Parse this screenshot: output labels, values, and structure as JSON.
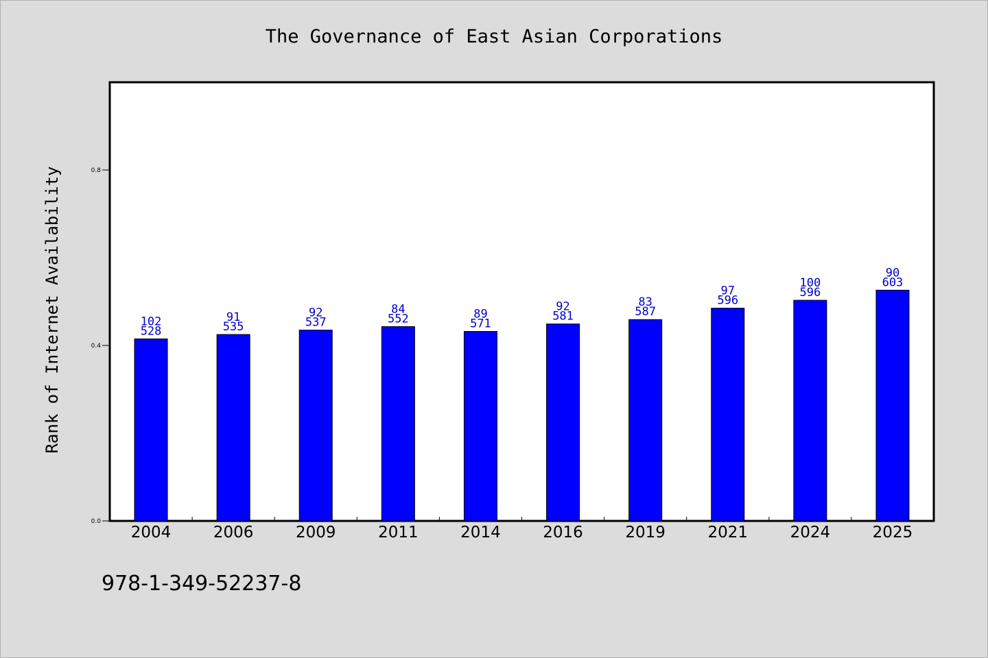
{
  "chart_data": {
    "type": "bar",
    "title": "The Governance of East Asian Corporations",
    "xlabel": "",
    "ylabel": "Rank of Internet Availability",
    "categories": [
      "2004",
      "2006",
      "2009",
      "2011",
      "2014",
      "2016",
      "2019",
      "2021",
      "2024",
      "2025"
    ],
    "values": [
      0.415,
      0.425,
      0.435,
      0.443,
      0.432,
      0.449,
      0.459,
      0.485,
      0.503,
      0.526
    ],
    "top_labels": [
      "102",
      "91",
      "92",
      "84",
      "89",
      "92",
      "83",
      "97",
      "100",
      "90"
    ],
    "bottom_labels": [
      "528",
      "535",
      "537",
      "552",
      "571",
      "581",
      "587",
      "596",
      "596",
      "603"
    ],
    "ylim": [
      0,
      1.0
    ],
    "yticks": [
      "0.0",
      "0.4",
      "0.8"
    ],
    "ytick_values": [
      0.0,
      0.4,
      0.8
    ],
    "grid": false,
    "colors": {
      "bar": "#0000ff",
      "label": "#0000cc",
      "plot_bg": "#ffffff",
      "page_bg": "#dcdcdc"
    }
  },
  "footer": {
    "isbn": "978-1-349-52237-8"
  }
}
